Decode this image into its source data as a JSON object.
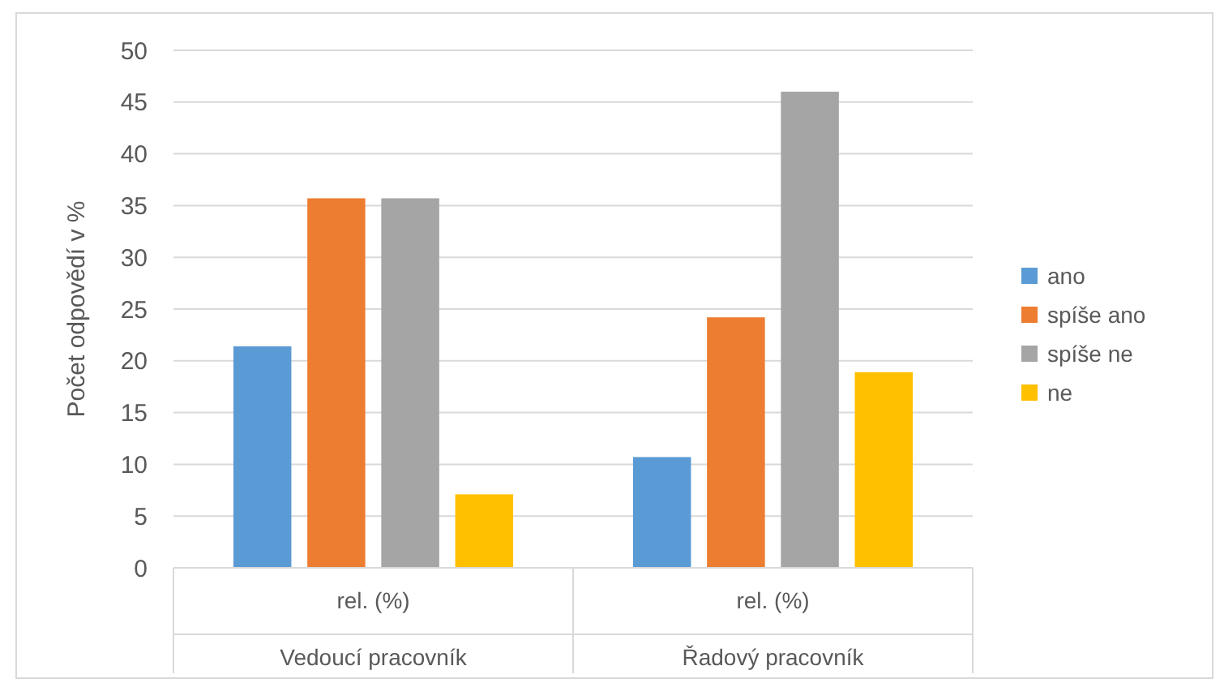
{
  "chart_data": {
    "type": "bar",
    "ylabel": "Počet odpovědí v %",
    "categories": [
      "rel. (%)",
      "rel. (%)"
    ],
    "series": [
      {
        "name": "ano",
        "color": "#5b9bd5",
        "values": [
          21.4,
          10.7
        ]
      },
      {
        "name": "spíše ano",
        "color": "#ed7d31",
        "values": [
          35.7,
          24.2
        ]
      },
      {
        "name": "spíše ne",
        "color": "#a5a5a5",
        "values": [
          35.7,
          46
        ]
      },
      {
        "name": "ne",
        "color": "#ffc000",
        "values": [
          7.1,
          18.9
        ]
      }
    ],
    "annotations": [
      "Vedoucí pracovník",
      "Řadový pracovník"
    ],
    "ylim": [
      0,
      50
    ],
    "yticks": [
      0,
      5,
      10,
      15,
      20,
      25,
      30,
      35,
      40,
      45,
      50
    ],
    "grid": "y",
    "legend": "right"
  }
}
